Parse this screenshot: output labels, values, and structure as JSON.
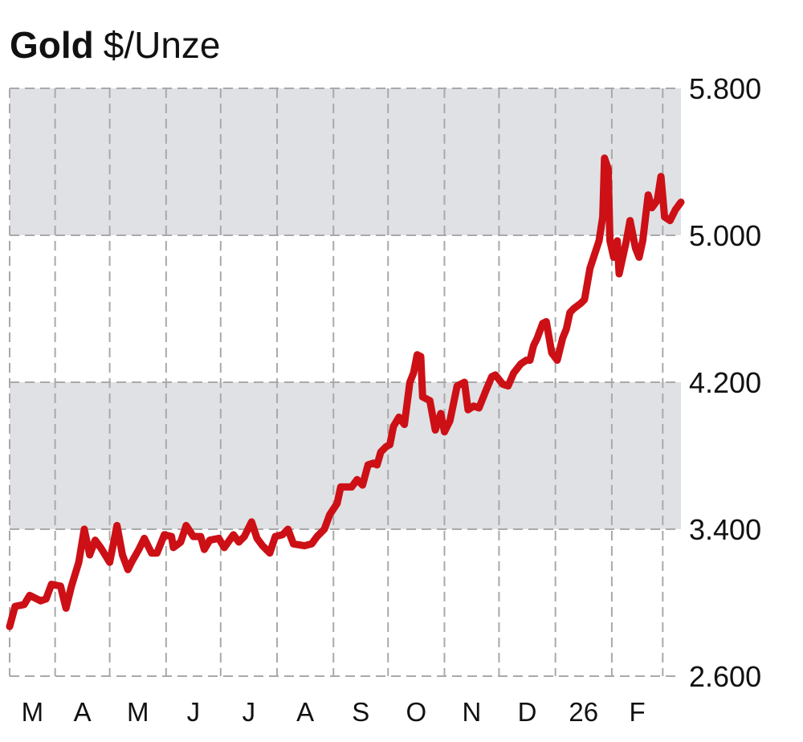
{
  "chart_data": {
    "type": "line",
    "title": "Gold",
    "subtitle": "$/Unze",
    "xlabel": "",
    "ylabel": "",
    "x_unit": "days since 1 March 2025",
    "xlim": [
      6,
      375
    ],
    "ylim": [
      2600,
      5800
    ],
    "grid": true,
    "legend": "none",
    "line_color": "#cc1016",
    "band_color": "#dfe1e4",
    "grid_color": "#a9a9a9",
    "shaded_bands": [
      [
        3400,
        4200
      ],
      [
        5000,
        5800
      ]
    ],
    "y_ticks": [
      {
        "value": 2600,
        "label": "2.600"
      },
      {
        "value": 3400,
        "label": "3.400"
      },
      {
        "value": 4200,
        "label": "4.200"
      },
      {
        "value": 5000,
        "label": "5.000"
      },
      {
        "value": 5800,
        "label": "5.800"
      }
    ],
    "month_boundaries": [
      31,
      61,
      92,
      122,
      153,
      184,
      214,
      245,
      275,
      306,
      337,
      365
    ],
    "x_ticks": [
      {
        "value": 18.5,
        "label": "M"
      },
      {
        "value": 46,
        "label": "A"
      },
      {
        "value": 76.5,
        "label": "M"
      },
      {
        "value": 107,
        "label": "J"
      },
      {
        "value": 137.5,
        "label": "J"
      },
      {
        "value": 168.5,
        "label": "A"
      },
      {
        "value": 199,
        "label": "S"
      },
      {
        "value": 229.5,
        "label": "O"
      },
      {
        "value": 260,
        "label": "N"
      },
      {
        "value": 290.5,
        "label": "D"
      },
      {
        "value": 321.5,
        "label": "26"
      },
      {
        "value": 351,
        "label": "F"
      }
    ],
    "series": [
      {
        "name": "Gold",
        "x": [
          6,
          9,
          14,
          17,
          23,
          26,
          29,
          34,
          37,
          40,
          44,
          47,
          50,
          53,
          56,
          61,
          65,
          68,
          71,
          73,
          77,
          80,
          84,
          87,
          91,
          95,
          96,
          100,
          103,
          107,
          111,
          113,
          116,
          121,
          124,
          129,
          132,
          135,
          139,
          142,
          145,
          149,
          152,
          156,
          159,
          162,
          168,
          172,
          175,
          179,
          182,
          186,
          188,
          194,
          197,
          200,
          203,
          206,
          208,
          210,
          213,
          215,
          217,
          220,
          223,
          226,
          228,
          230,
          232,
          233,
          237,
          240,
          243,
          245,
          248,
          252,
          256,
          258,
          261,
          264,
          268,
          271,
          273,
          277,
          280,
          283,
          287,
          290,
          292,
          294,
          296,
          299,
          301,
          304,
          307,
          310,
          312,
          314,
          316,
          320,
          322,
          325,
          330,
          332,
          333,
          335,
          336,
          338,
          340,
          341,
          343,
          345,
          347,
          350,
          352,
          354,
          357,
          359,
          362,
          364,
          366,
          369,
          372,
          375
        ],
        "y": [
          2870,
          2980,
          2990,
          3040,
          3010,
          3020,
          3100,
          3090,
          2970,
          3090,
          3220,
          3400,
          3260,
          3340,
          3300,
          3220,
          3420,
          3260,
          3180,
          3220,
          3290,
          3350,
          3270,
          3270,
          3370,
          3360,
          3300,
          3330,
          3420,
          3360,
          3360,
          3290,
          3340,
          3350,
          3300,
          3370,
          3330,
          3360,
          3440,
          3350,
          3310,
          3270,
          3360,
          3370,
          3400,
          3320,
          3310,
          3320,
          3360,
          3400,
          3480,
          3540,
          3630,
          3630,
          3670,
          3640,
          3750,
          3760,
          3750,
          3820,
          3850,
          3860,
          3960,
          4010,
          3970,
          4200,
          4250,
          4350,
          4340,
          4120,
          4100,
          3940,
          4030,
          3930,
          3990,
          4180,
          4200,
          4050,
          4070,
          4060,
          4160,
          4230,
          4240,
          4190,
          4180,
          4250,
          4300,
          4320,
          4320,
          4400,
          4440,
          4520,
          4530,
          4360,
          4320,
          4440,
          4490,
          4580,
          4600,
          4630,
          4650,
          4820,
          4970,
          5100,
          5420,
          5360,
          4970,
          4880,
          4970,
          4790,
          4880,
          4970,
          5080,
          4930,
          4880,
          4970,
          5220,
          5150,
          5190,
          5320,
          5100,
          5080,
          5140,
          5180
        ]
      }
    ]
  }
}
